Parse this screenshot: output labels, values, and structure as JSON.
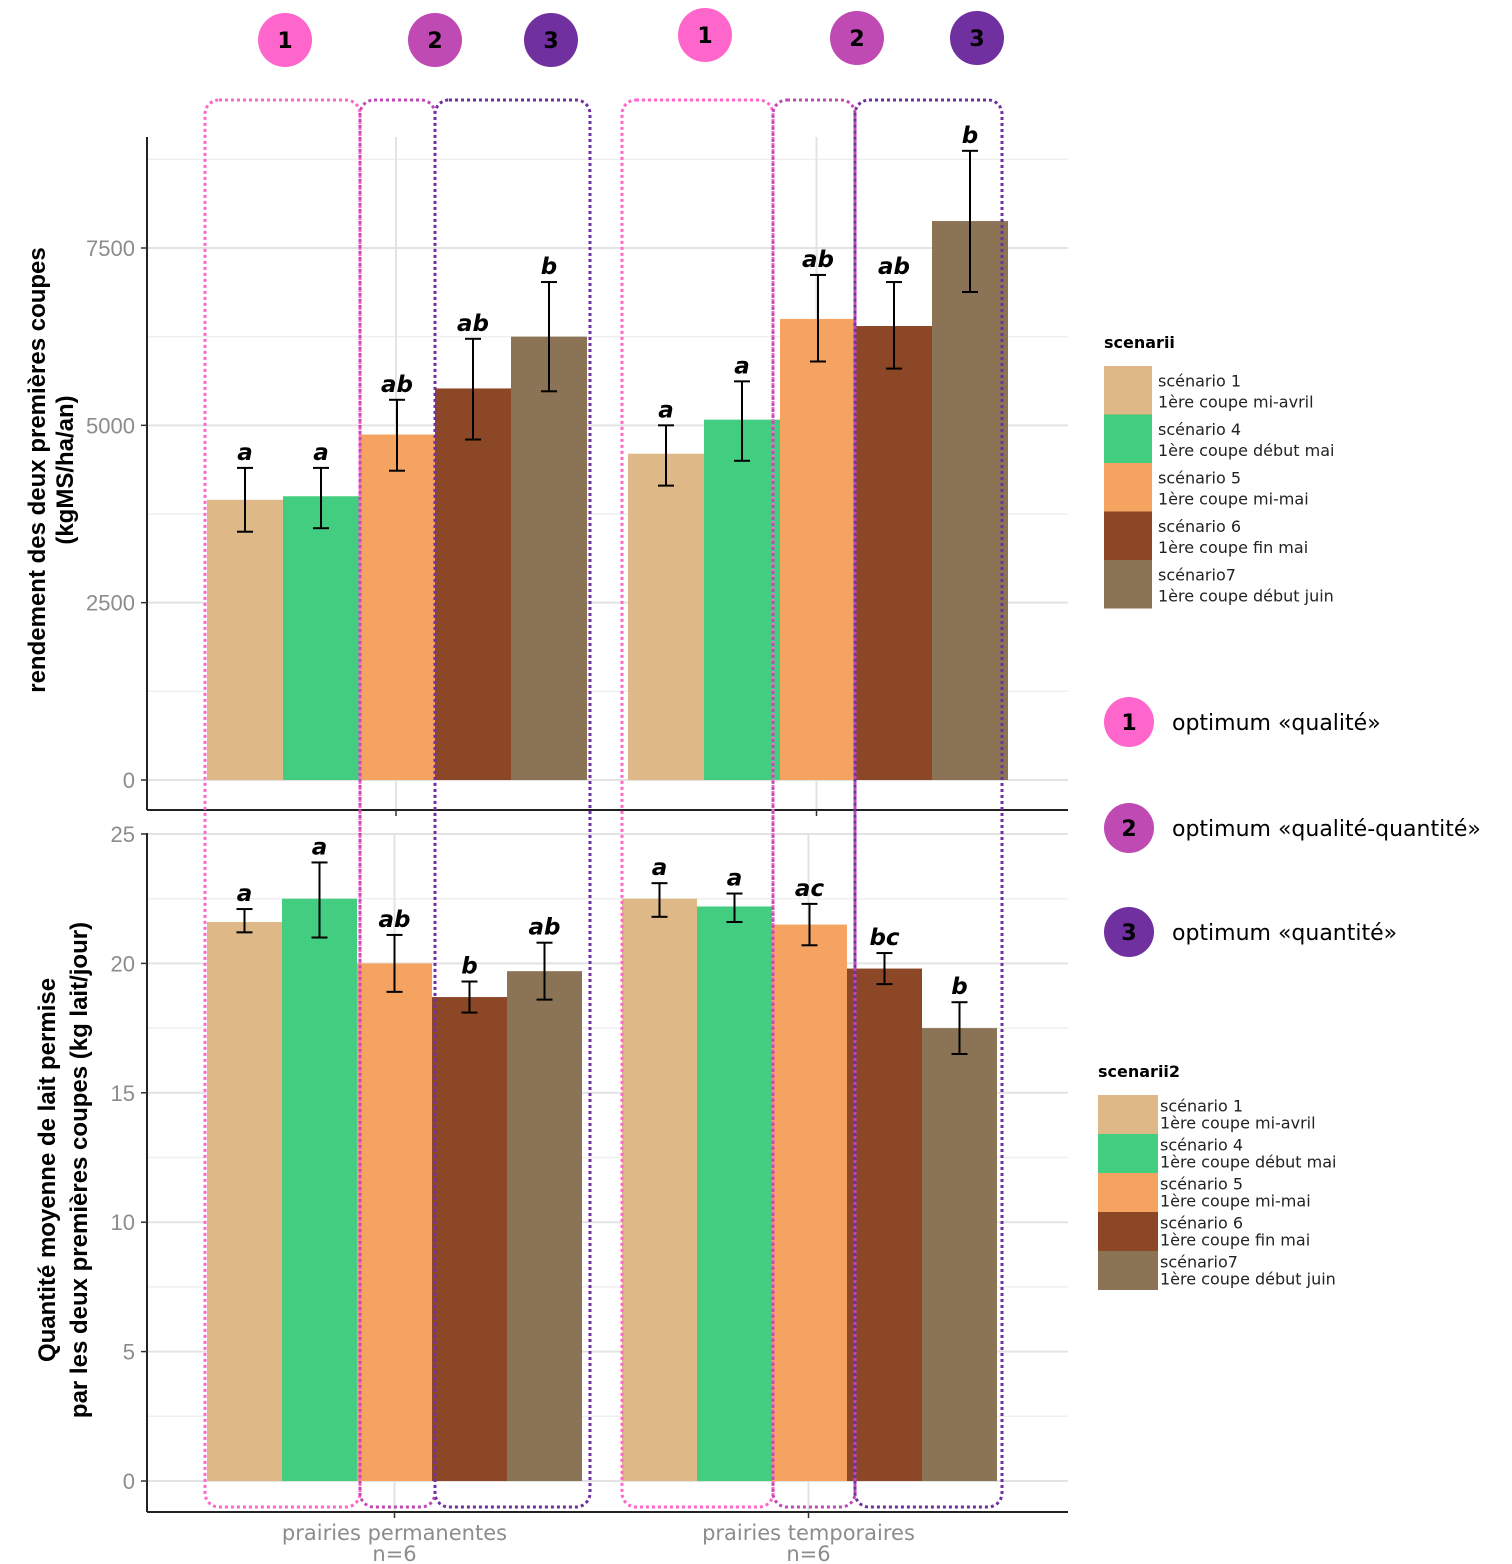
{
  "chart_data": [
    {
      "type": "bar",
      "ylabel": "rendement des deux premières coupes\n(kgMS/ha/an)",
      "categories": [
        "prairies permanentes\nn=6",
        "prairies temporaires\nn=6"
      ],
      "yticks": [
        "0",
        "2500",
        "5000",
        "7500"
      ],
      "ylim": [
        0,
        9000
      ],
      "grid": true,
      "legend": {
        "title": "scenarii",
        "position": "right",
        "entries": [
          {
            "line1": "scénario 1",
            "line2": "1ère coupe mi-avril",
            "color": "#deb887"
          },
          {
            "line1": "scénario 4",
            "line2": "1ère coupe début mai",
            "color": "#43cd80"
          },
          {
            "line1": "scénario 5",
            "line2": "1ère coupe mi-mai",
            "color": "#f4a460"
          },
          {
            "line1": "scénario 6",
            "line2": "1ère coupe fin mai",
            "color": "#8b4726"
          },
          {
            "line1": "scénario7",
            "line2": "1ère coupe début juin",
            "color": "#8b7355"
          }
        ]
      },
      "series": [
        {
          "values": [
            3950,
            4600
          ],
          "err_low": [
            3500,
            4150
          ],
          "err_high": [
            4400,
            5000
          ],
          "letters": [
            "a",
            "a"
          ]
        },
        {
          "values": [
            4000,
            5080
          ],
          "err_low": [
            3550,
            4500
          ],
          "err_high": [
            4400,
            5620
          ],
          "letters": [
            "a",
            "a"
          ]
        },
        {
          "values": [
            4870,
            6500
          ],
          "err_low": [
            4360,
            5900
          ],
          "err_high": [
            5360,
            7120
          ],
          "letters": [
            "ab",
            "ab"
          ]
        },
        {
          "values": [
            5520,
            6400
          ],
          "err_low": [
            4800,
            5800
          ],
          "err_high": [
            6220,
            7020
          ],
          "letters": [
            "ab",
            "ab"
          ]
        },
        {
          "values": [
            6250,
            7880
          ],
          "err_low": [
            5480,
            6880
          ],
          "err_high": [
            7020,
            8870
          ],
          "letters": [
            "b",
            "b"
          ]
        }
      ]
    },
    {
      "type": "bar",
      "ylabel": "Quantité moyenne de lait permise\npar les deux premières coupes (kg lait/jour)",
      "categories": [
        "prairies permanentes\nn=6",
        "prairies temporaires\nn=6"
      ],
      "yticks": [
        "0",
        "5",
        "10",
        "15",
        "20",
        "25"
      ],
      "ylim": [
        0,
        25
      ],
      "grid": true,
      "legend": {
        "title": "scenarii2",
        "position": "right",
        "entries": [
          {
            "line1": "scénario 1",
            "line2": "1ère coupe mi-avril",
            "color": "#deb887"
          },
          {
            "line1": "scénario 4",
            "line2": "1ère coupe début mai",
            "color": "#43cd80"
          },
          {
            "line1": "scénario 5",
            "line2": "1ère coupe mi-mai",
            "color": "#f4a460"
          },
          {
            "line1": "scénario 6",
            "line2": "1ère coupe fin mai",
            "color": "#8b4726"
          },
          {
            "line1": "scénario7",
            "line2": "1ère coupe début juin",
            "color": "#8b7355"
          }
        ]
      },
      "series": [
        {
          "values": [
            21.6,
            22.5
          ],
          "err_low": [
            21.2,
            21.8
          ],
          "err_high": [
            22.1,
            23.1
          ],
          "letters": [
            "a",
            "a"
          ]
        },
        {
          "values": [
            22.5,
            22.2
          ],
          "err_low": [
            21.0,
            21.6
          ],
          "err_high": [
            23.9,
            22.7
          ],
          "letters": [
            "a",
            "a"
          ]
        },
        {
          "values": [
            20.0,
            21.5
          ],
          "err_low": [
            18.9,
            20.7
          ],
          "err_high": [
            21.1,
            22.3
          ],
          "letters": [
            "ab",
            "ac"
          ]
        },
        {
          "values": [
            18.7,
            19.8
          ],
          "err_low": [
            18.1,
            19.2
          ],
          "err_high": [
            19.3,
            20.4
          ],
          "letters": [
            "b",
            "bc"
          ]
        },
        {
          "values": [
            19.7,
            17.5
          ],
          "err_low": [
            18.6,
            16.5
          ],
          "err_high": [
            20.8,
            18.5
          ],
          "letters": [
            "ab",
            "b"
          ]
        }
      ]
    }
  ],
  "groups": [
    {
      "number": "1",
      "color": "#ff66cc"
    },
    {
      "number": "2",
      "color": "#c04ab4"
    },
    {
      "number": "3",
      "color": "#7030a0"
    }
  ],
  "optima": [
    {
      "number": "1",
      "color": "#ff66cc",
      "label": "optimum «qualité»"
    },
    {
      "number": "2",
      "color": "#c04ab4",
      "label": "optimum «qualité-quantité»"
    },
    {
      "number": "3",
      "color": "#7030a0",
      "label": "optimum «quantité»"
    }
  ]
}
